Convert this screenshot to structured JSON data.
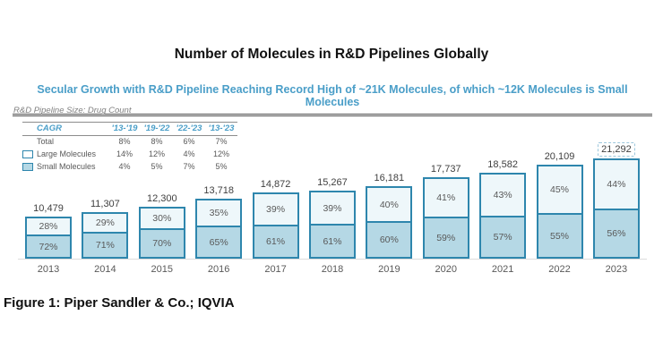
{
  "page": {
    "title": "Number of Molecules in R&D Pipelines Globally",
    "subtitle": "Secular Growth with R&D Pipeline Reaching Record High of ~21K Molecules, of which ~12K Molecules is Small Molecules",
    "axis_note": "R&D Pipeline Size: Drug Count",
    "caption": "Figure 1: Piper Sandler & Co.; IQVIA"
  },
  "colors": {
    "accent_blue": "#4A9EC8",
    "bar_border_teal": "#2E86AD",
    "large_molecules_fill": "#EEF7FA",
    "small_molecules_fill": "#B5D8E5",
    "text_gray": "#595959",
    "subtitle_underline": "#4D4D4D",
    "baseline_gray": "#DCDCDC"
  },
  "cagr_table": {
    "header": [
      "CAGR",
      "'13-'19",
      "'19-'22",
      "'22-'23",
      "'13-'23"
    ],
    "rows": [
      {
        "label": "Total",
        "swatch": "none",
        "values": [
          "8%",
          "8%",
          "6%",
          "7%"
        ]
      },
      {
        "label": "Large Molecules",
        "swatch": "large",
        "values": [
          "14%",
          "12%",
          "4%",
          "12%"
        ]
      },
      {
        "label": "Small Molecules",
        "swatch": "small",
        "values": [
          "4%",
          "5%",
          "7%",
          "5%"
        ]
      }
    ]
  },
  "chart_data": {
    "type": "bar",
    "stacked": true,
    "title": "Secular Growth with R&D Pipeline Reaching Record High of ~21K Molecules, of which ~12K Molecules is Small Molecules",
    "ylabel": "R&D Pipeline Size: Drug Count",
    "categories": [
      "2013",
      "2014",
      "2015",
      "2016",
      "2017",
      "2018",
      "2019",
      "2020",
      "2021",
      "2022",
      "2023"
    ],
    "totals": [
      10479,
      11307,
      12300,
      13718,
      14872,
      15267,
      16181,
      17737,
      18582,
      20109,
      21292
    ],
    "totals_formatted": [
      "10,479",
      "11,307",
      "12,300",
      "13,718",
      "14,872",
      "15,267",
      "16,181",
      "17,737",
      "18,582",
      "20,109",
      "21,292"
    ],
    "series": [
      {
        "name": "Large Molecules",
        "unit": "%",
        "values": [
          28,
          29,
          30,
          35,
          39,
          39,
          40,
          41,
          43,
          45,
          44
        ]
      },
      {
        "name": "Small Molecules",
        "unit": "%",
        "values": [
          72,
          71,
          70,
          65,
          61,
          61,
          60,
          59,
          57,
          55,
          56
        ]
      }
    ],
    "highlight_category": "2023",
    "legend_position": "top-left-table",
    "grid": false
  }
}
